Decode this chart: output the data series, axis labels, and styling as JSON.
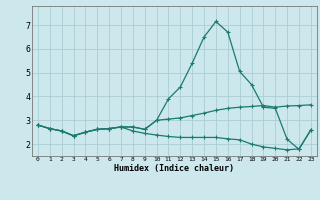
{
  "xlabel": "Humidex (Indice chaleur)",
  "xlim": [
    -0.5,
    23.5
  ],
  "ylim": [
    1.5,
    7.8
  ],
  "yticks": [
    2,
    3,
    4,
    5,
    6,
    7
  ],
  "xticks": [
    0,
    1,
    2,
    3,
    4,
    5,
    6,
    7,
    8,
    9,
    10,
    11,
    12,
    13,
    14,
    15,
    16,
    17,
    18,
    19,
    20,
    21,
    22,
    23
  ],
  "bg_color": "#cce8ec",
  "grid_color": "#aacdd4",
  "line_color": "#1a7a6e",
  "line1_y": [
    2.8,
    2.65,
    2.55,
    2.35,
    2.5,
    2.62,
    2.65,
    2.72,
    2.72,
    2.62,
    3.0,
    3.05,
    3.1,
    3.2,
    3.3,
    3.42,
    3.5,
    3.55,
    3.58,
    3.62,
    3.55,
    3.6,
    3.62,
    3.65
  ],
  "line2_y": [
    2.8,
    2.65,
    2.55,
    2.35,
    2.5,
    2.62,
    2.65,
    2.72,
    2.72,
    2.62,
    3.0,
    3.9,
    4.4,
    5.4,
    6.5,
    7.15,
    6.7,
    5.05,
    4.5,
    3.55,
    3.5,
    2.2,
    1.78,
    2.6
  ],
  "line3_y": [
    2.8,
    2.65,
    2.55,
    2.35,
    2.5,
    2.62,
    2.65,
    2.72,
    2.55,
    2.45,
    2.38,
    2.32,
    2.28,
    2.28,
    2.28,
    2.28,
    2.22,
    2.18,
    2.0,
    1.88,
    1.82,
    1.76,
    1.8,
    2.6
  ]
}
